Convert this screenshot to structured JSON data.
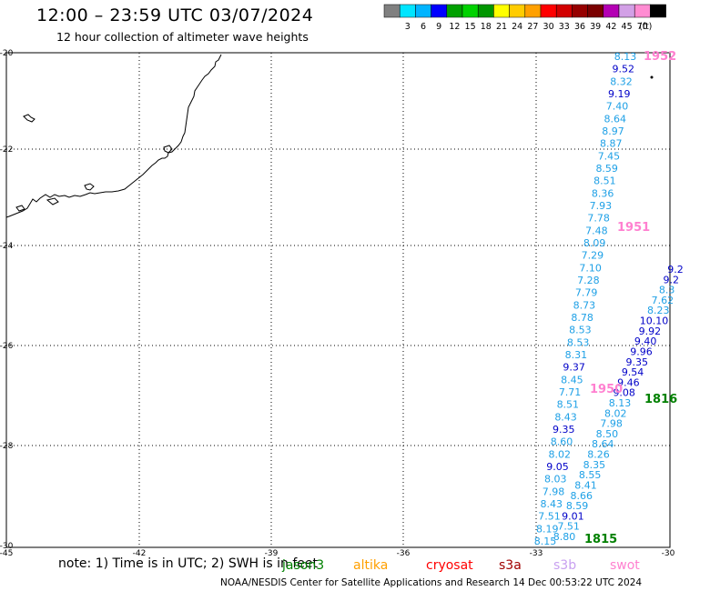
{
  "header": {
    "title": "12:00 – 23:59 UTC 03/07/2024",
    "subtitle": "12 hour collection of altimeter wave heights"
  },
  "colorbar": {
    "units": "(ft)",
    "bins": [
      {
        "label": "",
        "color": "#808080"
      },
      {
        "label": "3",
        "color": "#00e5ff"
      },
      {
        "label": "6",
        "color": "#00b4ff"
      },
      {
        "label": "9",
        "color": "#0000ff"
      },
      {
        "label": "12",
        "color": "#00a000"
      },
      {
        "label": "15",
        "color": "#00d200"
      },
      {
        "label": "18",
        "color": "#009600"
      },
      {
        "label": "21",
        "color": "#ffff00"
      },
      {
        "label": "24",
        "color": "#ffcc00"
      },
      {
        "label": "27",
        "color": "#ffa000"
      },
      {
        "label": "30",
        "color": "#ff0000"
      },
      {
        "label": "33",
        "color": "#d20000"
      },
      {
        "label": "36",
        "color": "#960000"
      },
      {
        "label": "39",
        "color": "#7a0000"
      },
      {
        "label": "42",
        "color": "#b400b4"
      },
      {
        "label": "45",
        "color": "#d2a0e6"
      },
      {
        "label": "70",
        "color": "#ff8cd2"
      },
      {
        "label": "",
        "color": "#000000"
      }
    ]
  },
  "axes": {
    "lon_labels": [
      "-45",
      "-42",
      "-39",
      "-36",
      "-33",
      "-30"
    ],
    "lat_labels": [
      "-20",
      "-22",
      "-24",
      "-26",
      "-28",
      "-30"
    ]
  },
  "tracks": [
    {
      "id": "trackA",
      "color": "#1ea0e6",
      "values": [
        "8.13",
        "9.52",
        "8.32",
        "9.19",
        "7.40",
        "8.64",
        "8.97",
        "8.87",
        "7.45",
        "8.59",
        "8.51",
        "8.36",
        "7.93",
        "7.78",
        "7.48",
        "8.09",
        "7.29",
        "7.10",
        "7.28",
        "7.79",
        "8.73",
        "8.78",
        "8.53",
        "8.53",
        "8.31",
        "9.37",
        "8.45",
        "7.71",
        "8.51",
        "8.43",
        "9.35",
        "8.60",
        "8.02",
        "9.05",
        "8.03",
        "7.98",
        "8.43",
        "7.51",
        "8.19",
        "8.15"
      ]
    },
    {
      "id": "trackB",
      "color": "#1ea0e6",
      "values": [
        "9.2",
        "9.2",
        "8.3",
        "7.62",
        "8.23",
        "10.10",
        "9.92",
        "9.40",
        "9.96",
        "9.35",
        "9.54",
        "9.46",
        "9.08",
        "8.13",
        "8.02",
        "7.98",
        "8.50",
        "8.64",
        "8.26",
        "8.35",
        "8.55",
        "8.41",
        "8.66",
        "8.59",
        "9.01",
        "7.51",
        "8.80"
      ]
    }
  ],
  "time_marks": [
    {
      "label": "1952",
      "color": "#ff80d0"
    },
    {
      "label": "1951",
      "color": "#ff80d0"
    },
    {
      "label": "1950",
      "color": "#ff80d0"
    },
    {
      "label": "1816",
      "color": "#008000"
    },
    {
      "label": "1815",
      "color": "#008000"
    }
  ],
  "footer": {
    "note": "note:  1) Time is in UTC;  2) SWH is in feet",
    "satellites": [
      {
        "name": "jason3",
        "color": "#008000"
      },
      {
        "name": "altika",
        "color": "#ffa000"
      },
      {
        "name": "cryosat",
        "color": "#ff0000"
      },
      {
        "name": "s3a",
        "color": "#a00000"
      },
      {
        "name": "s3b",
        "color": "#c8a0f0"
      },
      {
        "name": "swot",
        "color": "#ff80d0"
      }
    ],
    "credit": "NOAA/NESDIS Center for Satellite Applications and Research     14 Dec 00:53:22 UTC 2024"
  }
}
